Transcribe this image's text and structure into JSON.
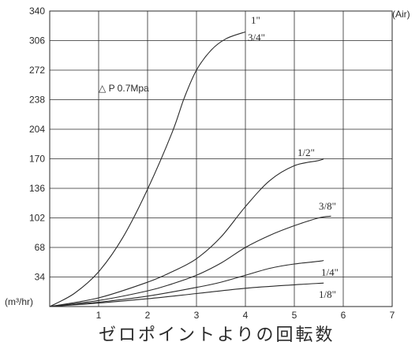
{
  "chart_data": {
    "type": "line",
    "xlabel": "ゼロポイントよりの回転数",
    "ylabel": "(m³/hr)",
    "unit_right": "(Air)",
    "annotation": "△ P 0.7Mpa",
    "xlim": [
      0,
      7
    ],
    "ylim": [
      0,
      340
    ],
    "x_ticks": [
      "1",
      "2",
      "3",
      "4",
      "5",
      "6",
      "7"
    ],
    "y_ticks": [
      "34",
      "68",
      "102",
      "136",
      "170",
      "204",
      "238",
      "272",
      "306",
      "340"
    ],
    "grid": true,
    "series": [
      {
        "name": "1\"",
        "label_alt": "3/4\"",
        "x": [
          0,
          0.5,
          1,
          1.5,
          2,
          2.5,
          2.75,
          3,
          3.3,
          3.6,
          4
        ],
        "y": [
          0,
          15,
          40,
          80,
          135,
          200,
          240,
          272,
          295,
          308,
          316
        ]
      },
      {
        "name": "1/2\"",
        "x": [
          0,
          1,
          2,
          2.5,
          3,
          3.5,
          4,
          4.5,
          5,
          5.5,
          5.6
        ],
        "y": [
          0,
          10,
          28,
          40,
          55,
          80,
          115,
          145,
          162,
          168,
          170
        ]
      },
      {
        "name": "3/8\"",
        "x": [
          0,
          1,
          2,
          2.5,
          3,
          3.5,
          4,
          4.5,
          5,
          5.5,
          5.75
        ],
        "y": [
          0,
          7,
          18,
          26,
          36,
          50,
          68,
          82,
          93,
          102,
          104
        ]
      },
      {
        "name": "1/4\"",
        "x": [
          0,
          1,
          2,
          3,
          3.5,
          4,
          4.5,
          5,
          5.5,
          5.6
        ],
        "y": [
          0,
          5,
          12,
          22,
          28,
          36,
          44,
          49,
          52,
          53
        ]
      },
      {
        "name": "1/8\"",
        "x": [
          0,
          1,
          2,
          3,
          4,
          5,
          5.6
        ],
        "y": [
          0,
          4,
          9,
          15,
          21,
          25,
          27
        ]
      }
    ]
  }
}
